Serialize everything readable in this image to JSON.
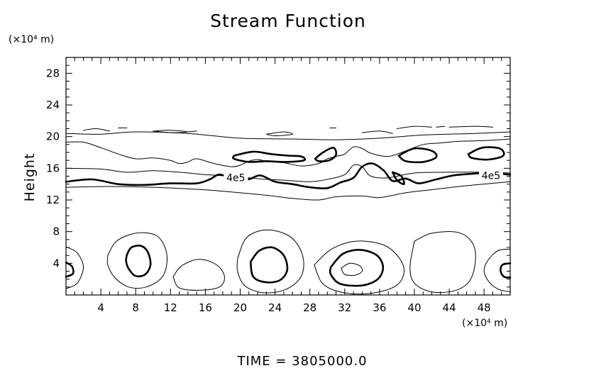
{
  "chart_data": {
    "type": "contour",
    "title": "Stream Function",
    "ylabel": "Height",
    "x_unit_label": "(×10⁴ m)",
    "y_unit_label": "(×10⁴ m)",
    "xlim": [
      0,
      51
    ],
    "ylim": [
      0,
      30
    ],
    "x_ticks": [
      "4",
      "8",
      "12",
      "16",
      "20",
      "24",
      "28",
      "32",
      "36",
      "40",
      "44",
      "48"
    ],
    "y_ticks": [
      "4",
      "8",
      "12",
      "16",
      "20",
      "24",
      "28"
    ],
    "contour_labels": [
      {
        "text": "4e5",
        "x": 19.5,
        "y": 14.8
      },
      {
        "text": "4e5",
        "x": 48.8,
        "y": 15.1
      }
    ],
    "thin_contours": [
      [
        [
          0,
          13.6
        ],
        [
          5,
          13.7
        ],
        [
          10,
          13.6
        ],
        [
          14,
          13.4
        ],
        [
          17,
          13.2
        ],
        [
          20,
          12.9
        ],
        [
          23,
          12.6
        ],
        [
          26,
          12.2
        ],
        [
          29,
          12.0
        ],
        [
          31,
          12.4
        ],
        [
          34,
          12.5
        ],
        [
          36,
          12.3
        ],
        [
          39,
          12.9
        ],
        [
          42,
          13.3
        ],
        [
          46,
          13.8
        ],
        [
          51,
          14.3
        ]
      ],
      [
        [
          0,
          16.0
        ],
        [
          4,
          15.9
        ],
        [
          7,
          15.5
        ],
        [
          10,
          15.7
        ],
        [
          13,
          15.5
        ],
        [
          16,
          15.2
        ],
        [
          19,
          15.0
        ],
        [
          21,
          14.8
        ],
        [
          23,
          14.6
        ],
        [
          25,
          14.5
        ],
        [
          28,
          14.3
        ],
        [
          30,
          14.6
        ],
        [
          32,
          15.2
        ],
        [
          33,
          16.4
        ],
        [
          34,
          16.2
        ],
        [
          35,
          15.0
        ],
        [
          37,
          14.8
        ],
        [
          40,
          15.4
        ],
        [
          44,
          15.5
        ],
        [
          48,
          15.5
        ],
        [
          51,
          15.4
        ]
      ],
      [
        [
          0,
          19.3
        ],
        [
          2,
          19.3
        ],
        [
          4,
          18.6
        ],
        [
          6,
          17.8
        ],
        [
          8,
          17.2
        ],
        [
          10,
          17.3
        ],
        [
          12,
          17.0
        ],
        [
          13,
          16.6
        ],
        [
          14,
          16.8
        ],
        [
          15,
          17.2
        ],
        [
          17,
          16.6
        ],
        [
          19,
          16.2
        ],
        [
          20,
          16.4
        ],
        [
          21,
          16.9
        ],
        [
          22,
          17.1
        ],
        [
          23,
          16.9
        ],
        [
          25,
          16.7
        ],
        [
          27,
          16.3
        ],
        [
          29,
          16.6
        ],
        [
          30,
          17.2
        ],
        [
          31,
          17.5
        ],
        [
          32,
          17.8
        ],
        [
          33,
          18.7
        ],
        [
          34,
          18.5
        ],
        [
          35,
          17.9
        ],
        [
          37,
          17.5
        ],
        [
          39,
          18.2
        ],
        [
          41,
          19.0
        ],
        [
          43,
          19.2
        ],
        [
          45,
          19.4
        ],
        [
          48,
          19.5
        ],
        [
          51,
          19.7
        ]
      ],
      [
        [
          0,
          20.4
        ],
        [
          4,
          20.3
        ],
        [
          8,
          20.6
        ],
        [
          14,
          20.4
        ],
        [
          20,
          19.8
        ],
        [
          26,
          19.7
        ],
        [
          31,
          19.6
        ],
        [
          36,
          19.8
        ],
        [
          41,
          20.2
        ],
        [
          47,
          20.4
        ],
        [
          51,
          20.6
        ]
      ],
      [
        [
          2,
          20.8
        ],
        [
          3.5,
          21.0
        ],
        [
          5,
          20.7
        ]
      ],
      [
        [
          6,
          21.1
        ],
        [
          7,
          21.1
        ]
      ],
      [
        [
          10,
          20.7
        ],
        [
          12,
          20.8
        ],
        [
          14,
          20.6
        ],
        [
          12,
          20.5
        ],
        [
          10,
          20.7
        ]
      ],
      [
        [
          14,
          20.6
        ],
        [
          15,
          20.7
        ]
      ],
      [
        [
          30.3,
          21.1
        ],
        [
          31,
          21.1
        ]
      ],
      [
        [
          38,
          21.0
        ],
        [
          40,
          21.3
        ],
        [
          42,
          21.2
        ]
      ],
      [
        [
          42.5,
          21.2
        ],
        [
          43.5,
          21.3
        ]
      ],
      [
        [
          44,
          21.2
        ],
        [
          47,
          21.3
        ],
        [
          49,
          21.2
        ]
      ],
      [
        [
          23,
          20.3
        ],
        [
          25,
          20.6
        ],
        [
          26,
          20.3
        ],
        [
          24,
          20.1
        ],
        [
          23,
          20.3
        ]
      ],
      [
        [
          34,
          20.5
        ],
        [
          36,
          20.7
        ],
        [
          37.5,
          20.4
        ]
      ],
      [
        [
          0,
          6.1
        ],
        [
          1.3,
          5.3
        ],
        [
          2,
          3.5
        ],
        [
          1.3,
          1.5
        ],
        [
          0,
          0.8
        ]
      ],
      [
        [
          4.8,
          5.0
        ],
        [
          5.8,
          6.8
        ],
        [
          8,
          7.8
        ],
        [
          10.2,
          7.6
        ],
        [
          11.3,
          6.2
        ],
        [
          11.6,
          4.2
        ],
        [
          11.0,
          2.2
        ],
        [
          9.2,
          1.0
        ],
        [
          7.2,
          1.0
        ],
        [
          5.6,
          2.2
        ],
        [
          4.8,
          3.8
        ],
        [
          4.8,
          5.0
        ]
      ],
      [
        [
          12.3,
          2.3
        ],
        [
          13.3,
          3.7
        ],
        [
          15.3,
          4.5
        ],
        [
          17.3,
          3.8
        ],
        [
          18.2,
          2.3
        ],
        [
          17.6,
          1.0
        ],
        [
          15.3,
          0.6
        ],
        [
          13.0,
          0.9
        ],
        [
          12.3,
          2.3
        ]
      ],
      [
        [
          19.7,
          4.6
        ],
        [
          20.7,
          7.2
        ],
        [
          22.8,
          8.2
        ],
        [
          25.2,
          7.7
        ],
        [
          26.7,
          6.2
        ],
        [
          27.3,
          4.0
        ],
        [
          26.8,
          2.0
        ],
        [
          25.0,
          0.6
        ],
        [
          22.5,
          0.3
        ],
        [
          20.5,
          1.2
        ],
        [
          19.7,
          3.0
        ],
        [
          19.7,
          4.6
        ]
      ],
      [
        [
          28.5,
          3.8
        ],
        [
          30.5,
          5.8
        ],
        [
          33.3,
          6.8
        ],
        [
          36.5,
          6.3
        ],
        [
          38.3,
          4.6
        ],
        [
          38.8,
          2.8
        ],
        [
          37.8,
          1.1
        ],
        [
          35.0,
          0.2
        ],
        [
          31.8,
          0.3
        ],
        [
          29.5,
          1.4
        ],
        [
          28.5,
          3.8
        ]
      ],
      [
        [
          31.6,
          3.4
        ],
        [
          32.6,
          4.0
        ],
        [
          33.7,
          3.7
        ],
        [
          34.0,
          3.0
        ],
        [
          33.2,
          2.5
        ],
        [
          32.0,
          2.6
        ],
        [
          31.6,
          3.4
        ]
      ],
      [
        [
          40.0,
          6.8
        ],
        [
          42.0,
          7.8
        ],
        [
          45.0,
          7.9
        ],
        [
          46.7,
          6.5
        ],
        [
          47.0,
          4.2
        ],
        [
          46.3,
          1.7
        ],
        [
          44.5,
          0.5
        ],
        [
          41.9,
          0.4
        ],
        [
          40.0,
          1.5
        ],
        [
          39.5,
          3.5
        ],
        [
          40.0,
          6.8
        ]
      ],
      [
        [
          51,
          5.8
        ],
        [
          49.6,
          5.6
        ],
        [
          48.4,
          4.3
        ],
        [
          48.0,
          3.0
        ],
        [
          48.6,
          1.6
        ],
        [
          49.7,
          0.7
        ],
        [
          51,
          0.4
        ]
      ]
    ],
    "thick_contours": [
      [
        [
          0,
          14.3
        ],
        [
          3,
          14.6
        ],
        [
          6,
          14.0
        ],
        [
          9,
          13.9
        ],
        [
          12,
          14.1
        ],
        [
          15,
          14.1
        ],
        [
          16.5,
          14.6
        ],
        [
          17.5,
          15.2
        ],
        [
          18.5,
          15.0
        ],
        [
          20.8,
          14.6
        ],
        [
          22.3,
          15.1
        ],
        [
          24,
          14.3
        ],
        [
          26,
          14.0
        ],
        [
          28,
          13.6
        ],
        [
          30,
          13.5
        ],
        [
          31.5,
          14.2
        ],
        [
          33,
          14.8
        ],
        [
          34,
          16.2
        ],
        [
          35.2,
          16.6
        ],
        [
          36.5,
          15.7
        ],
        [
          37.5,
          14.4
        ],
        [
          39,
          14.7
        ],
        [
          40.5,
          14.1
        ],
        [
          42.5,
          14.6
        ],
        [
          44.5,
          15.1
        ],
        [
          46.5,
          15.3
        ],
        [
          48.5,
          15.4
        ],
        [
          51,
          15.2
        ]
      ],
      [
        [
          19.3,
          17.6
        ],
        [
          21.5,
          18.1
        ],
        [
          23.5,
          17.8
        ],
        [
          25.5,
          17.6
        ],
        [
          27,
          17.5
        ],
        [
          27.3,
          17.0
        ],
        [
          25,
          16.8
        ],
        [
          23,
          16.9
        ],
        [
          21,
          16.8
        ],
        [
          19.3,
          17.2
        ],
        [
          19.3,
          17.6
        ]
      ],
      [
        [
          28.6,
          17.2
        ],
        [
          29.5,
          18.0
        ],
        [
          30.7,
          18.6
        ],
        [
          31.0,
          17.7
        ],
        [
          30.2,
          17.0
        ],
        [
          29.0,
          16.9
        ],
        [
          28.6,
          17.2
        ]
      ],
      [
        [
          38.2,
          17.6
        ],
        [
          40,
          18.5
        ],
        [
          42,
          18.2
        ],
        [
          42.5,
          17.4
        ],
        [
          41,
          16.8
        ],
        [
          39,
          16.9
        ],
        [
          38.2,
          17.6
        ]
      ],
      [
        [
          46.2,
          17.8
        ],
        [
          47.8,
          18.6
        ],
        [
          49.8,
          18.5
        ],
        [
          50.2,
          17.6
        ],
        [
          48.5,
          17.1
        ],
        [
          46.6,
          17.3
        ],
        [
          46.2,
          17.8
        ]
      ],
      [
        [
          37.5,
          15.5
        ],
        [
          38,
          14.5
        ],
        [
          38.8,
          14.0
        ],
        [
          38.5,
          15.0
        ],
        [
          37.5,
          15.5
        ]
      ],
      [
        [
          0,
          4.1
        ],
        [
          0.7,
          3.6
        ],
        [
          0.8,
          2.7
        ],
        [
          0,
          2.3
        ]
      ],
      [
        [
          7.0,
          5.1
        ],
        [
          7.5,
          6.0
        ],
        [
          8.6,
          6.2
        ],
        [
          9.4,
          5.4
        ],
        [
          9.7,
          3.8
        ],
        [
          9.1,
          2.6
        ],
        [
          8.0,
          2.4
        ],
        [
          7.2,
          3.3
        ],
        [
          6.9,
          4.3
        ],
        [
          7.0,
          5.1
        ]
      ],
      [
        [
          21.2,
          4.2
        ],
        [
          22.2,
          5.6
        ],
        [
          23.7,
          6.0
        ],
        [
          25.0,
          5.0
        ],
        [
          25.4,
          3.2
        ],
        [
          24.6,
          1.9
        ],
        [
          23.0,
          1.6
        ],
        [
          21.5,
          2.3
        ],
        [
          21.2,
          4.2
        ]
      ],
      [
        [
          30.4,
          3.5
        ],
        [
          31.8,
          5.2
        ],
        [
          33.8,
          5.7
        ],
        [
          35.7,
          5.0
        ],
        [
          36.4,
          3.5
        ],
        [
          35.8,
          2.0
        ],
        [
          34.0,
          1.2
        ],
        [
          31.5,
          1.4
        ],
        [
          30.4,
          2.6
        ],
        [
          30.4,
          3.5
        ]
      ],
      [
        [
          51,
          4.0
        ],
        [
          50.1,
          3.8
        ],
        [
          49.9,
          3.0
        ],
        [
          50.3,
          2.3
        ],
        [
          51,
          2.2
        ]
      ]
    ]
  },
  "footer": {
    "time_label": "TIME  =  3805000.0"
  }
}
